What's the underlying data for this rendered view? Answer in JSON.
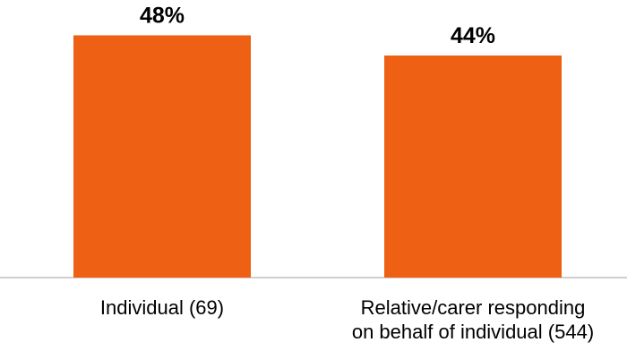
{
  "chart_data": {
    "type": "bar",
    "categories": [
      [
        "Individual (69)"
      ],
      [
        "Relative/carer responding",
        "on behalf of individual (544)"
      ]
    ],
    "values": [
      48,
      44
    ],
    "data_labels": [
      "48%",
      "44%"
    ],
    "ylim": [
      0,
      55
    ],
    "grid": false,
    "legend": "none",
    "bar_color": "#EE6014",
    "axis_color": "#BFBFBF"
  }
}
